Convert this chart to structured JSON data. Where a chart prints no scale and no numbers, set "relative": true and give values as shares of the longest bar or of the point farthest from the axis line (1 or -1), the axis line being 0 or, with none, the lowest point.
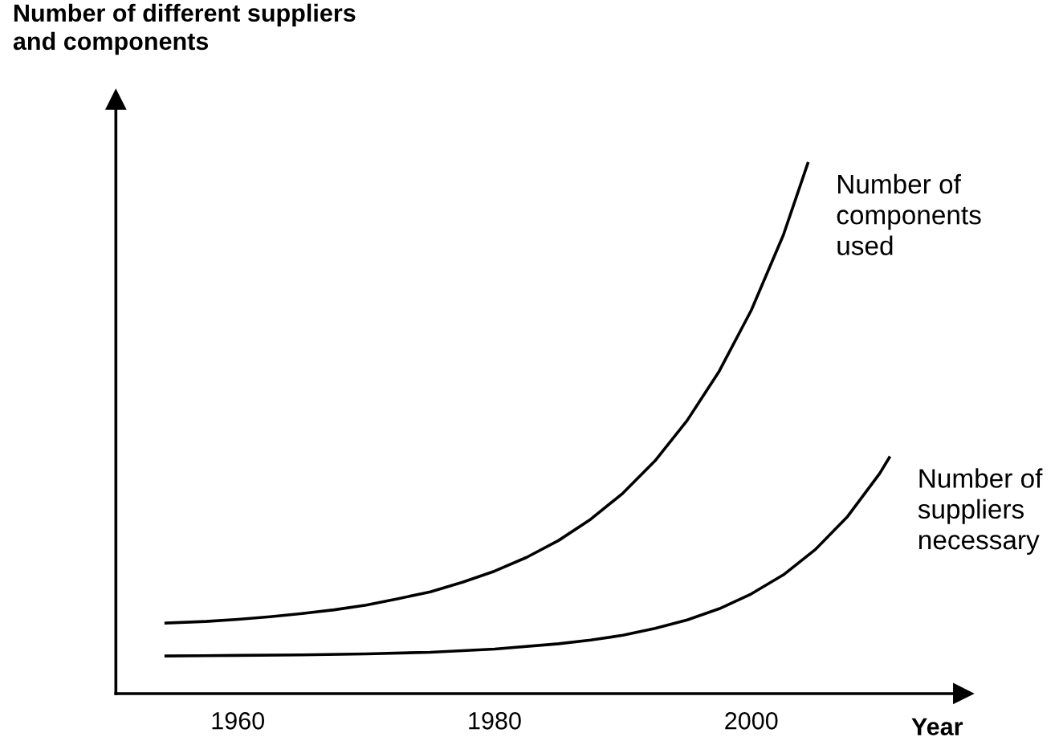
{
  "chart_data": {
    "type": "line",
    "relative": true,
    "ylabel": "Number of different suppliers\nand components",
    "xlabel": "Year",
    "xlim": [
      1950.5,
      2016.5
    ],
    "xticks": [
      1960,
      1980,
      2000
    ],
    "grid": false,
    "marker": "none",
    "line_style": "solid",
    "series": [
      {
        "name": "Number of\ncomponents\nused",
        "color": "#000000",
        "x": [
          1954.4,
          1957.5,
          1960,
          1962.5,
          1965,
          1967.5,
          1970,
          1972.5,
          1975,
          1977.5,
          1980,
          1982.5,
          1985,
          1987.5,
          1990,
          1992.5,
          1995,
          1997.5,
          2000,
          2002.5,
          2004.4
        ],
        "values": [
          0.133,
          0.136,
          0.14,
          0.145,
          0.151,
          0.158,
          0.167,
          0.179,
          0.192,
          0.21,
          0.231,
          0.257,
          0.289,
          0.329,
          0.378,
          0.439,
          0.515,
          0.608,
          0.723,
          0.865,
          1
        ]
      },
      {
        "name": "Number of\nsuppliers\nnecessary",
        "color": "#000000",
        "x": [
          1954.4,
          1960,
          1965,
          1970,
          1975,
          1980,
          1985,
          1987.5,
          1990,
          1992.5,
          1995,
          1997.5,
          2000,
          2002.5,
          2005,
          2007.5,
          2010,
          2010.75
        ],
        "values": [
          0.071,
          0.072,
          0.073,
          0.075,
          0.078,
          0.084,
          0.094,
          0.101,
          0.11,
          0.123,
          0.139,
          0.16,
          0.188,
          0.224,
          0.272,
          0.334,
          0.415,
          0.445
        ]
      }
    ]
  }
}
